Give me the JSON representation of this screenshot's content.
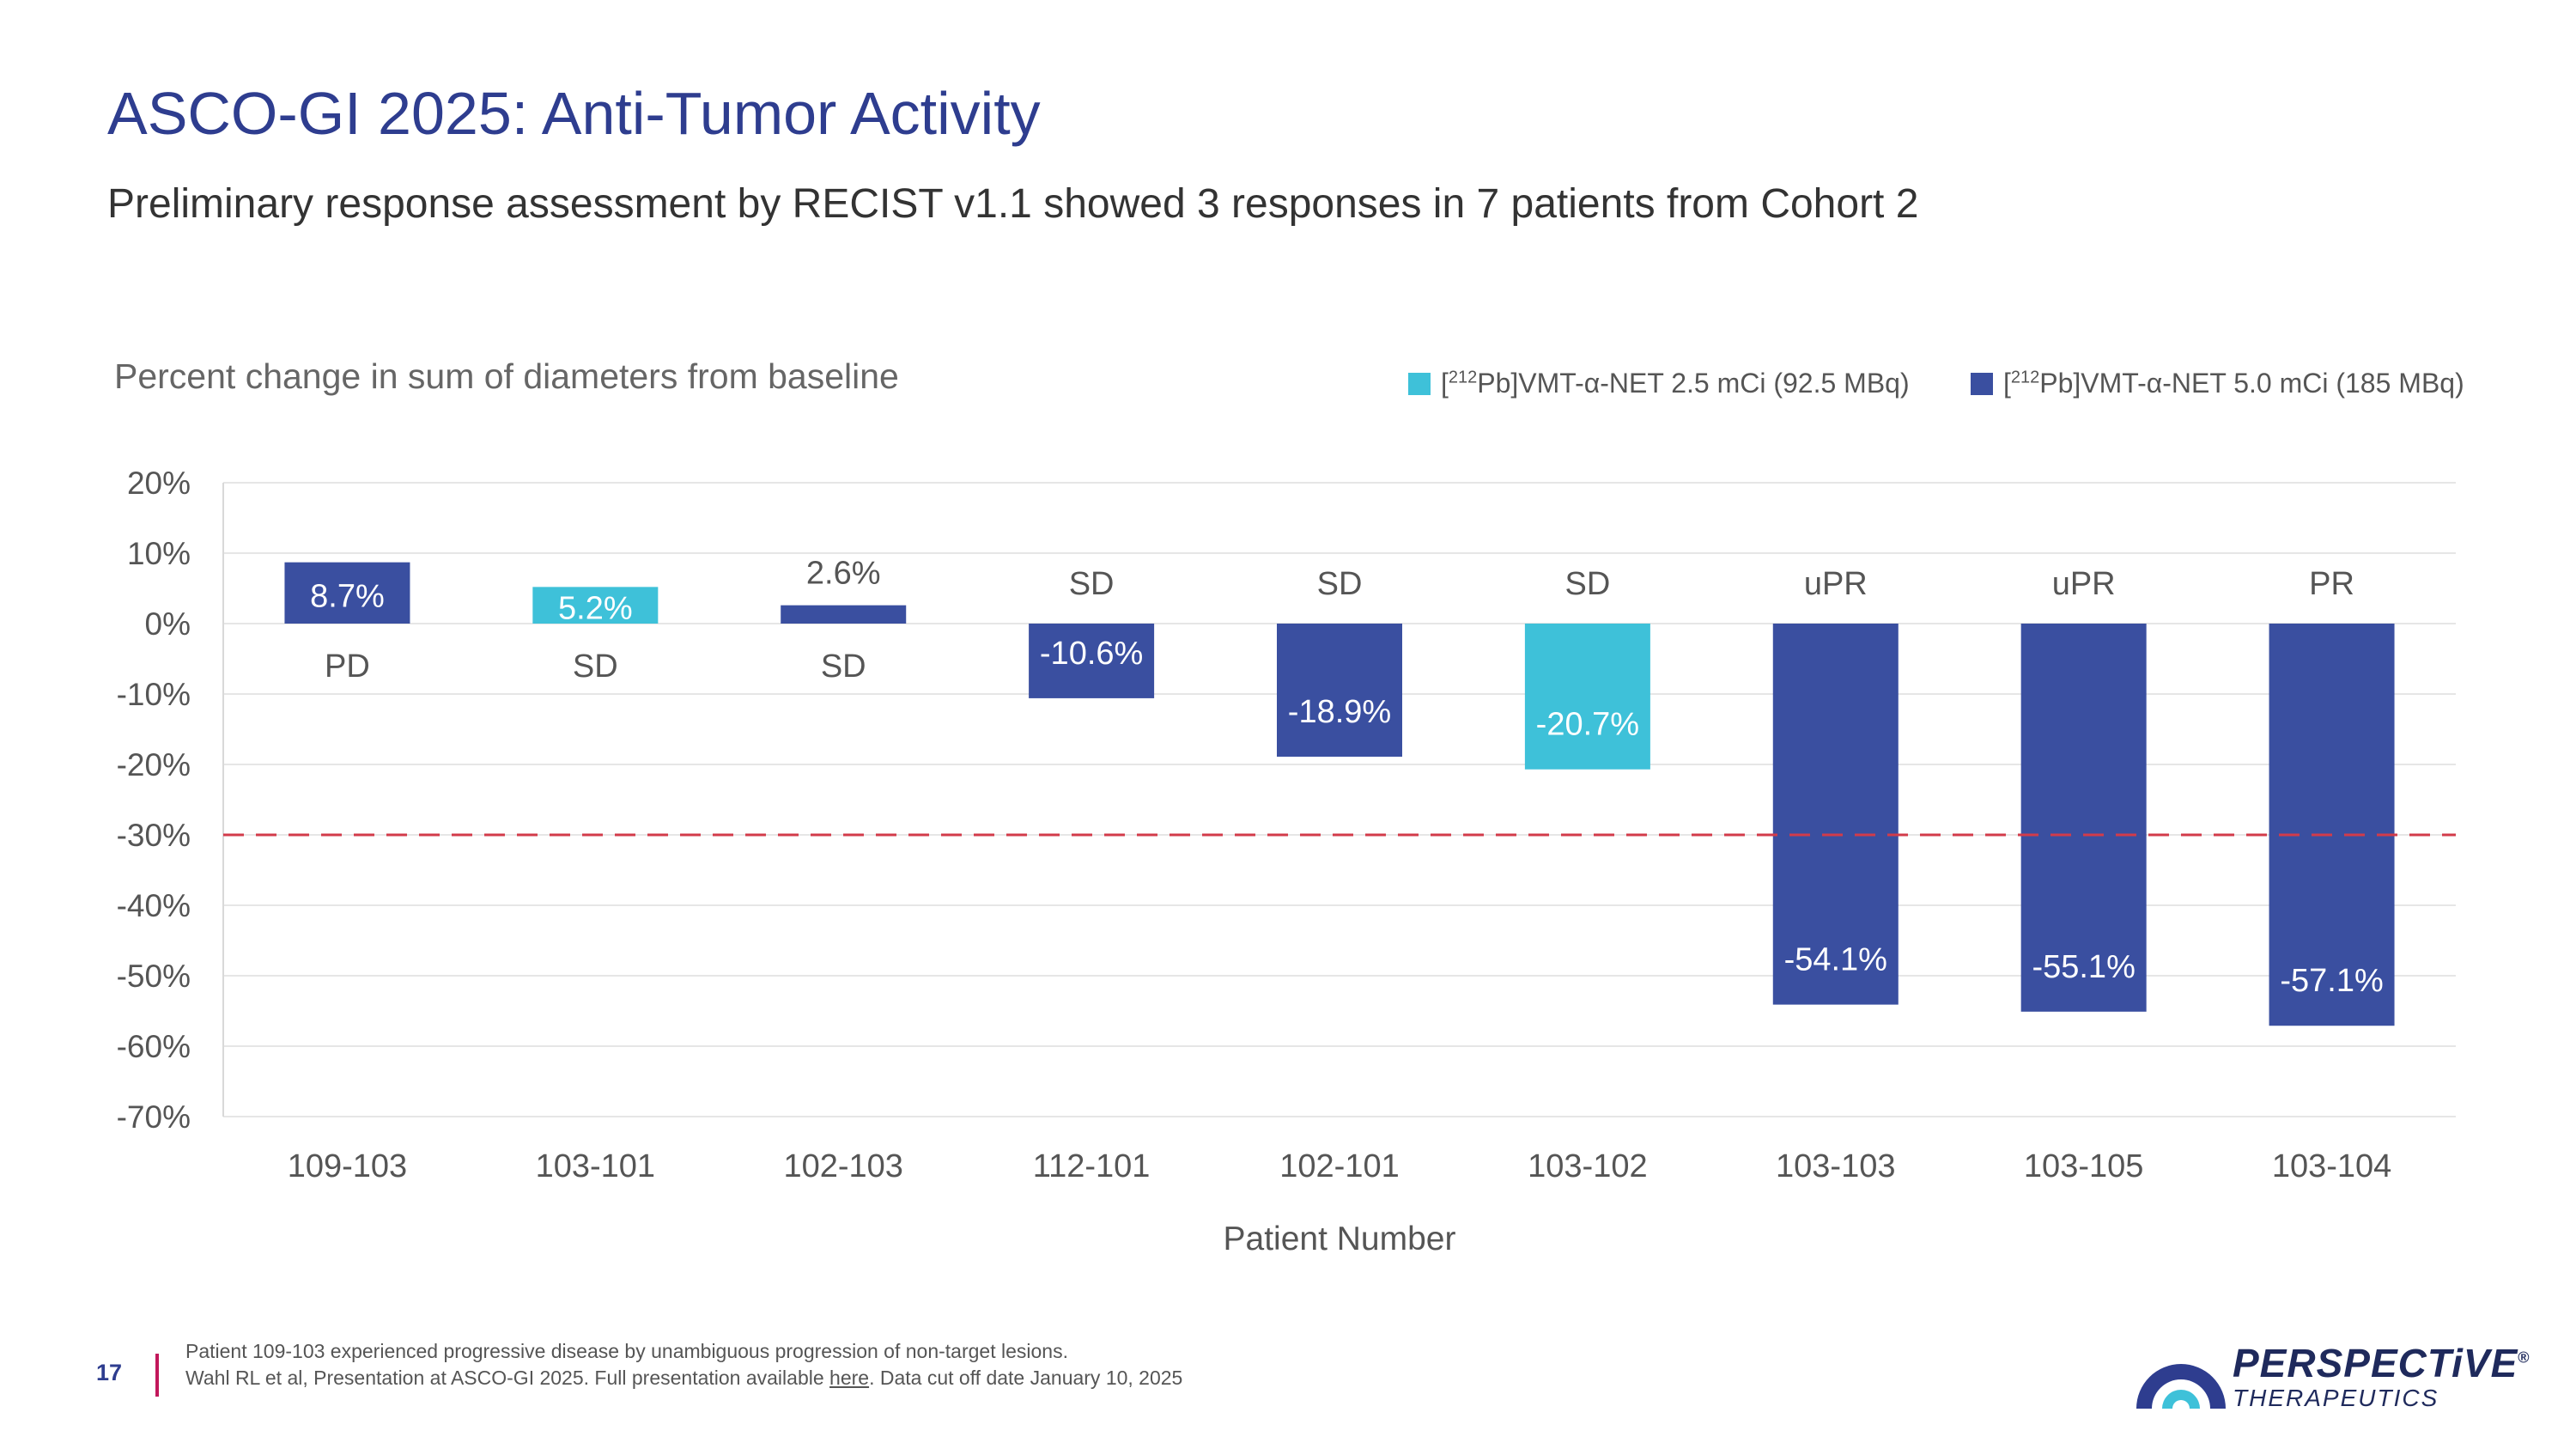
{
  "header": {
    "title": "ASCO-GI 2025: Anti-Tumor Activity",
    "subtitle": "Preliminary response assessment by RECIST v1.1 showed 3 responses in 7 patients from Cohort  2"
  },
  "colors": {
    "title": "#2e3d8f",
    "dose_2_5": "#3ec1d9",
    "dose_5_0": "#3a4fa0",
    "threshold": "#d23b4a",
    "grid": "#e6e6e6"
  },
  "legend": [
    {
      "sup": "212",
      "pre": "[",
      "post": "Pb]VMT-α-NET 2.5 mCi (92.5 MBq)",
      "color_key": "dose_2_5"
    },
    {
      "sup": "212",
      "pre": "[",
      "post": "Pb]VMT-α-NET 5.0 mCi (185 MBq)",
      "color_key": "dose_5_0"
    }
  ],
  "chart_data": {
    "type": "bar",
    "title": "Percent change in sum of diameters from baseline",
    "xlabel": "Patient Number",
    "ylabel": "",
    "ylim": [
      -70,
      20
    ],
    "yticks": [
      20,
      10,
      0,
      -10,
      -20,
      -30,
      -40,
      -50,
      -60,
      -70
    ],
    "ytick_labels": [
      "20%",
      "10%",
      "0%",
      "-10%",
      "-20%",
      "-30%",
      "-40%",
      "-50%",
      "-60%",
      "-70%"
    ],
    "threshold": -30,
    "categories": [
      "109-103",
      "103-101",
      "102-103",
      "112-101",
      "102-101",
      "103-102",
      "103-103",
      "103-105",
      "103-104"
    ],
    "values": [
      8.7,
      5.2,
      2.6,
      -10.6,
      -18.9,
      -20.7,
      -54.1,
      -55.1,
      -57.1
    ],
    "value_labels": [
      "8.7%",
      "5.2%",
      "2.6%",
      "-10.6%",
      "-18.9%",
      "-20.7%",
      "-54.1%",
      "-55.1%",
      "-57.1%"
    ],
    "responses": [
      "PD",
      "SD",
      "SD",
      "SD",
      "SD",
      "SD",
      "uPR",
      "uPR",
      "PR"
    ],
    "dose_groups": [
      "dose_5_0",
      "dose_2_5",
      "dose_5_0",
      "dose_5_0",
      "dose_5_0",
      "dose_2_5",
      "dose_5_0",
      "dose_5_0",
      "dose_5_0"
    ],
    "series": [
      {
        "name": "[212Pb]VMT-α-NET 2.5 mCi (92.5 MBq)",
        "color_key": "dose_2_5"
      },
      {
        "name": "[212Pb]VMT-α-NET 5.0 mCi (185 MBq)",
        "color_key": "dose_5_0"
      }
    ]
  },
  "footer": {
    "page_number": "17",
    "note1": "Patient 109-103 experienced progressive disease by unambiguous progression of non-target lesions.",
    "note2_pre": "Wahl RL et al, Presentation at ASCO-GI 2025. Full presentation available ",
    "note2_link": "here",
    "note2_post": ". Data cut off date January 10, 2025"
  },
  "logo": {
    "name": "PERSPECTiVE",
    "reg": "®",
    "sub": "THERAPEUTICS"
  }
}
